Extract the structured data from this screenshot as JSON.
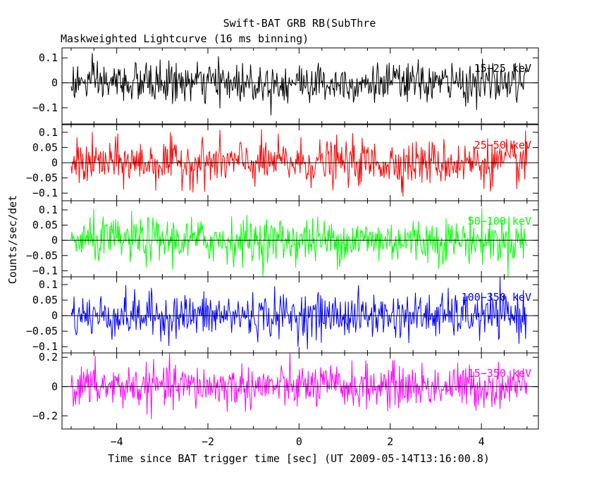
{
  "title": "Swift-BAT GRB RB(SubThre",
  "subtitle": "Maskweighted Lightcurve (16 ms binning)",
  "chart_data": {
    "type": "line",
    "xlabel": "Time since BAT trigger time [sec] (UT 2009-05-14T13:16:00.8)",
    "ylabel": "Counts/sec/det",
    "xlim": [
      -5.2,
      5.25
    ],
    "x_ticks": [
      -4,
      -2,
      0,
      2,
      4
    ],
    "x_tick_labels": [
      "−4",
      "−2",
      "0",
      "2",
      "4"
    ],
    "data_x_range": [
      -5.0,
      5.0
    ],
    "bin_width_sec": 0.016,
    "grid": false,
    "panels": [
      {
        "name": "15−25 keV",
        "color": "#000000",
        "ylim": [
          -0.165,
          0.14
        ],
        "y_ticks": [
          0.1,
          0,
          -0.1
        ],
        "y_tick_labels": [
          "0.1",
          "0",
          "−0.1"
        ],
        "approx_std": 0.04
      },
      {
        "name": "25−50 keV",
        "color": "#ff0000",
        "ylim": [
          -0.125,
          0.125
        ],
        "y_ticks": [
          0.1,
          0.05,
          0,
          -0.05,
          -0.1
        ],
        "y_tick_labels": [
          "0.1",
          "0.05",
          "0",
          "−0.05",
          "−0.1"
        ],
        "approx_std": 0.037
      },
      {
        "name": "50−100 keV",
        "color": "#00ff00",
        "ylim": [
          -0.12,
          0.13
        ],
        "y_ticks": [
          0.1,
          0.05,
          0,
          -0.05,
          -0.1
        ],
        "y_tick_labels": [
          "0.1",
          "0.05",
          "0",
          "−0.05",
          "−0.1"
        ],
        "approx_std": 0.037
      },
      {
        "name": "100−350 keV",
        "color": "#0000ff",
        "ylim": [
          -0.12,
          0.125
        ],
        "y_ticks": [
          0.1,
          0.05,
          0,
          -0.05,
          -0.1
        ],
        "y_tick_labels": [
          "0.1",
          "0.05",
          "0",
          "−0.05",
          "−0.1"
        ],
        "approx_std": 0.036
      },
      {
        "name": "15−350 keV",
        "color": "#ff00ff",
        "ylim": [
          -0.29,
          0.23
        ],
        "y_ticks": [
          0.2,
          0,
          -0.2
        ],
        "y_tick_labels": [
          "0.2",
          "0",
          "−0.2"
        ],
        "approx_std": 0.075
      }
    ]
  }
}
